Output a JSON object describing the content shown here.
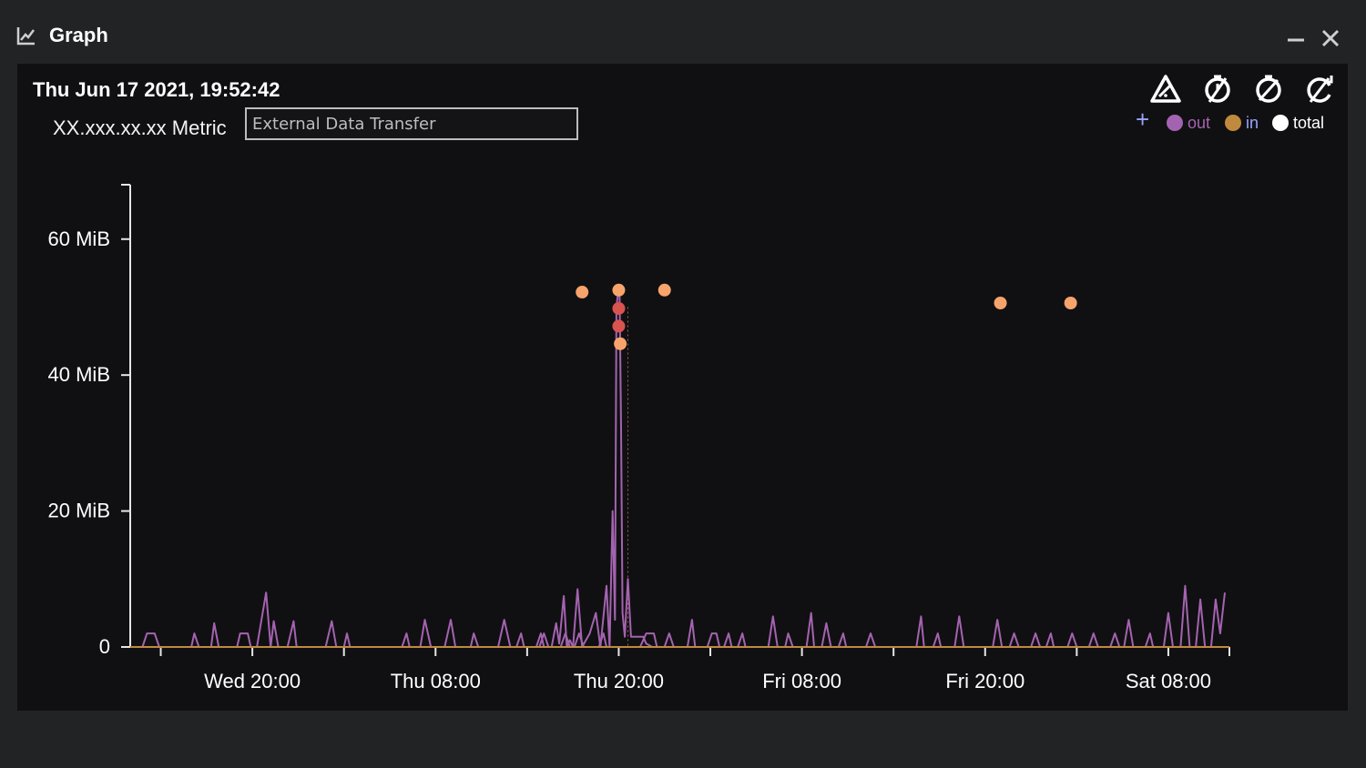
{
  "window": {
    "title": "Graph",
    "icon": "chart-line-icon",
    "minimize_icon": "minimize-icon",
    "close_icon": "close-icon"
  },
  "header": {
    "timestamp": "Thu Jun 17 2021, 19:52:42",
    "metric_label": "XX.xxx.xx.xx Metric",
    "metric_value": "External Data Transfer"
  },
  "toolbar": {
    "icons": [
      "alert-triangle-icon",
      "no-time-icon",
      "no-compare-icon",
      "no-refresh-icon"
    ],
    "add_icon": "plus-icon"
  },
  "legend": [
    {
      "label": "out",
      "color": "#a463b0"
    },
    {
      "label": "in",
      "color": "#c08a3e"
    },
    {
      "label": "total",
      "color": "#ffffff"
    }
  ],
  "chart_data": {
    "type": "line",
    "ylabel": "",
    "xlabel": "",
    "y_ticks": [
      "0",
      "20 MiB",
      "40 MiB",
      "60 MiB"
    ],
    "y_tick_values": [
      0,
      20,
      40,
      60
    ],
    "ylim": [
      0,
      68
    ],
    "x_ticks": [
      "Wed 20:00",
      "Thu 08:00",
      "Thu 20:00",
      "Fri 08:00",
      "Fri 20:00",
      "Sat 08:00"
    ],
    "x_tick_hours": [
      0,
      12,
      24,
      36,
      48,
      60
    ],
    "xlim_hours": [
      -8,
      64
    ],
    "grid": false,
    "legend_position": "top-right",
    "series": [
      {
        "name": "out",
        "color": "#a463b0",
        "points": [
          [
            -7.2,
            0
          ],
          [
            -6.9,
            2
          ],
          [
            -6.4,
            2
          ],
          [
            -6.1,
            0
          ],
          [
            -4.0,
            0
          ],
          [
            -3.8,
            2
          ],
          [
            -3.5,
            0
          ],
          [
            -2.7,
            0
          ],
          [
            -2.5,
            3.5
          ],
          [
            -2.2,
            0
          ],
          [
            -1.0,
            0
          ],
          [
            -0.8,
            2
          ],
          [
            -0.3,
            2
          ],
          [
            -0.1,
            0
          ],
          [
            0.3,
            0
          ],
          [
            0.9,
            8
          ],
          [
            1.2,
            0
          ],
          [
            1.4,
            3.8
          ],
          [
            1.7,
            0
          ],
          [
            2.3,
            0
          ],
          [
            2.7,
            3.8
          ],
          [
            2.9,
            0
          ],
          [
            4.8,
            0
          ],
          [
            5.2,
            3.8
          ],
          [
            5.5,
            0
          ],
          [
            6.0,
            0
          ],
          [
            6.2,
            2
          ],
          [
            6.4,
            0
          ],
          [
            9.8,
            0
          ],
          [
            10.1,
            2
          ],
          [
            10.3,
            0
          ],
          [
            11.0,
            0
          ],
          [
            11.3,
            4
          ],
          [
            11.7,
            0
          ],
          [
            12.6,
            0
          ],
          [
            13.0,
            4
          ],
          [
            13.3,
            0
          ],
          [
            14.3,
            0
          ],
          [
            14.5,
            2
          ],
          [
            14.8,
            0
          ],
          [
            16.1,
            0
          ],
          [
            16.5,
            4
          ],
          [
            16.9,
            0
          ],
          [
            17.3,
            0
          ],
          [
            17.6,
            2
          ],
          [
            17.8,
            0
          ],
          [
            18.8,
            0
          ],
          [
            19.1,
            2
          ],
          [
            19.4,
            0
          ],
          [
            20.2,
            0
          ],
          [
            20.5,
            2
          ],
          [
            20.8,
            0
          ],
          [
            21.1,
            0
          ],
          [
            21.4,
            2
          ],
          [
            21.7,
            0
          ],
          [
            22.7,
            0
          ],
          [
            23.0,
            2
          ],
          [
            23.2,
            0
          ],
          [
            25.4,
            0
          ],
          [
            25.8,
            2
          ],
          [
            26.3,
            2
          ],
          [
            26.5,
            0
          ],
          [
            27.0,
            0
          ],
          [
            27.3,
            2
          ],
          [
            27.6,
            0
          ],
          [
            28.5,
            0
          ],
          [
            28.8,
            4
          ],
          [
            29.0,
            0
          ],
          [
            29.8,
            0
          ],
          [
            30.1,
            2
          ],
          [
            30.4,
            2
          ],
          [
            30.6,
            0
          ],
          [
            30.9,
            0
          ],
          [
            31.2,
            2
          ],
          [
            31.4,
            0
          ],
          [
            31.8,
            0
          ],
          [
            32.1,
            2
          ],
          [
            32.3,
            0
          ],
          [
            33.8,
            0
          ],
          [
            34.1,
            4.5
          ],
          [
            34.4,
            0
          ],
          [
            34.9,
            0
          ],
          [
            35.1,
            2
          ],
          [
            35.4,
            0
          ],
          [
            36.3,
            0
          ],
          [
            36.6,
            5
          ],
          [
            36.8,
            0
          ],
          [
            37.3,
            0
          ],
          [
            37.6,
            3.5
          ],
          [
            37.9,
            0
          ],
          [
            38.4,
            0
          ],
          [
            38.7,
            2
          ],
          [
            38.9,
            0
          ],
          [
            40.2,
            0
          ],
          [
            40.5,
            2
          ],
          [
            40.8,
            0
          ],
          [
            43.5,
            0
          ],
          [
            43.8,
            4.5
          ],
          [
            44.0,
            0
          ],
          [
            44.6,
            0
          ],
          [
            44.9,
            2
          ],
          [
            45.1,
            0
          ],
          [
            46.0,
            0
          ],
          [
            46.3,
            4.5
          ],
          [
            46.6,
            0
          ],
          [
            48.5,
            0
          ],
          [
            48.8,
            4
          ],
          [
            49.1,
            0
          ],
          [
            49.6,
            0
          ],
          [
            49.9,
            2
          ],
          [
            50.2,
            0
          ],
          [
            51.0,
            0
          ],
          [
            51.3,
            2
          ],
          [
            51.6,
            0
          ],
          [
            52.0,
            0
          ],
          [
            52.3,
            2
          ],
          [
            52.5,
            0
          ],
          [
            53.4,
            0
          ],
          [
            53.7,
            2
          ],
          [
            54.0,
            0
          ],
          [
            54.8,
            0
          ],
          [
            55.1,
            2
          ],
          [
            55.4,
            0
          ],
          [
            56.2,
            0
          ],
          [
            56.5,
            2
          ],
          [
            56.8,
            0
          ],
          [
            57.1,
            0
          ],
          [
            57.4,
            4
          ],
          [
            57.7,
            0
          ],
          [
            58.5,
            0
          ],
          [
            58.8,
            2
          ],
          [
            59.0,
            0
          ],
          [
            59.7,
            0
          ],
          [
            60.0,
            5
          ],
          [
            60.3,
            0
          ],
          [
            60.8,
            0
          ],
          [
            61.1,
            9
          ],
          [
            61.4,
            0
          ],
          [
            61.8,
            0
          ],
          [
            62.1,
            7
          ],
          [
            62.4,
            0
          ],
          [
            62.8,
            0
          ],
          [
            63.1,
            7
          ],
          [
            63.4,
            2
          ],
          [
            63.7,
            8
          ]
        ],
        "spike": [
          [
            18.0,
            0
          ],
          [
            18.6,
            0
          ],
          [
            18.9,
            2
          ],
          [
            19.1,
            0
          ],
          [
            19.6,
            0
          ],
          [
            19.9,
            3.5
          ],
          [
            20.1,
            0.5
          ],
          [
            20.4,
            7.5
          ],
          [
            20.6,
            0
          ],
          [
            20.8,
            1
          ],
          [
            21.0,
            0
          ],
          [
            21.3,
            8.5
          ],
          [
            21.6,
            0
          ],
          [
            22.1,
            2
          ],
          [
            22.5,
            5
          ],
          [
            22.8,
            0
          ],
          [
            23.2,
            9
          ],
          [
            23.4,
            0
          ],
          [
            23.6,
            20
          ],
          [
            23.75,
            4
          ],
          [
            23.85,
            50
          ],
          [
            23.95,
            52
          ],
          [
            24.05,
            53
          ],
          [
            24.15,
            32
          ],
          [
            24.25,
            5
          ],
          [
            24.4,
            1.5
          ],
          [
            24.6,
            10
          ],
          [
            24.8,
            1.5
          ],
          [
            25.2,
            1.5
          ],
          [
            25.6,
            1.5
          ],
          [
            25.8,
            0.5
          ],
          [
            26.2,
            0
          ]
        ]
      },
      {
        "name": "in",
        "color": "#c08a3e",
        "points": [
          [
            -8,
            0
          ],
          [
            64,
            0
          ]
        ]
      }
    ],
    "markers": [
      {
        "x_hours": 21.6,
        "y": 52.2,
        "color": "#f6a46b"
      },
      {
        "x_hours": 24.0,
        "y": 52.5,
        "color": "#f6a46b"
      },
      {
        "x_hours": 27.0,
        "y": 52.5,
        "color": "#f6a46b"
      },
      {
        "x_hours": 24.0,
        "y": 49.8,
        "color": "#d9534f"
      },
      {
        "x_hours": 24.0,
        "y": 47.2,
        "color": "#d9534f"
      },
      {
        "x_hours": 24.1,
        "y": 44.6,
        "color": "#f6a46b"
      },
      {
        "x_hours": 49.0,
        "y": 50.6,
        "color": "#f6a46b"
      },
      {
        "x_hours": 53.6,
        "y": 50.6,
        "color": "#f6a46b"
      }
    ]
  }
}
